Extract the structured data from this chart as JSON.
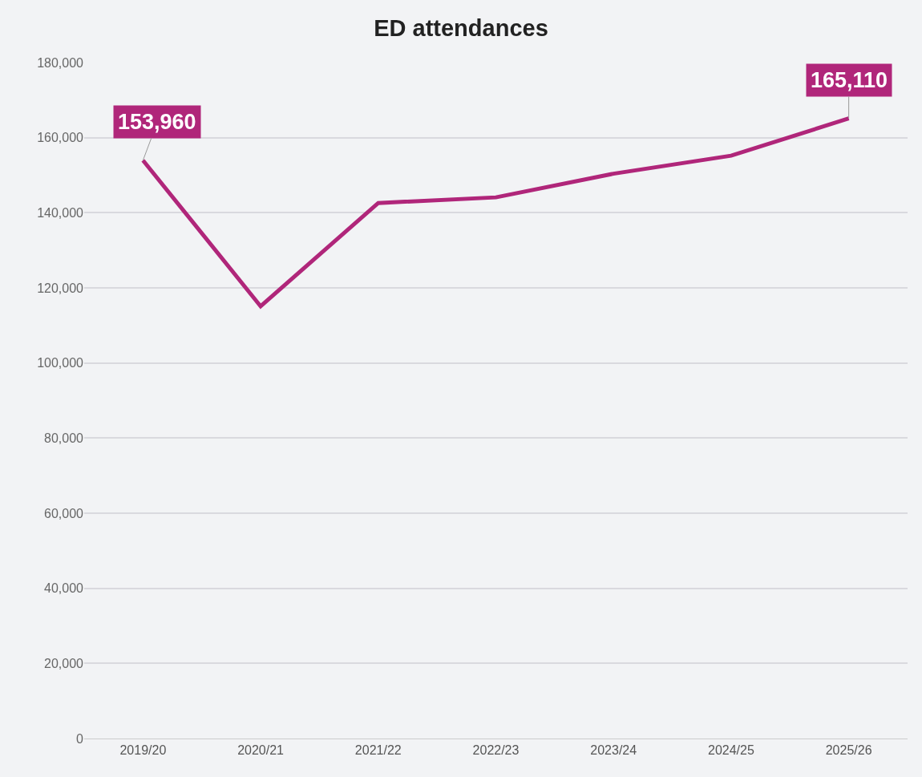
{
  "chart_data": {
    "type": "line",
    "title": "ED attendances",
    "categories": [
      "2019/20",
      "2020/21",
      "2021/22",
      "2022/23",
      "2023/24",
      "2024/25",
      "2025/26"
    ],
    "series": [
      {
        "color": "#b0267a",
        "values": [
          153960,
          115100,
          142600,
          144100,
          150400,
          155200,
          165110
        ],
        "value_labels": [
          "153,960",
          null,
          null,
          null,
          null,
          null,
          "165,110"
        ]
      }
    ],
    "ylim": [
      0,
      180000
    ],
    "yticks": [
      0,
      {
        "value": 20000,
        "label": "20,000"
      },
      {
        "value": 40000,
        "label": "40,000"
      },
      {
        "value": 60000,
        "label": "60,000"
      },
      {
        "value": 80000,
        "label": "80,000"
      },
      {
        "value": 100000,
        "label": "100,000"
      },
      {
        "value": 120000,
        "label": "120,000"
      },
      {
        "value": 140000,
        "label": "140,000"
      },
      {
        "value": 160000,
        "label": "160,000"
      },
      {
        "value": 180000,
        "label": "180,000"
      }
    ],
    "grid": "y",
    "line_style": "solid"
  }
}
